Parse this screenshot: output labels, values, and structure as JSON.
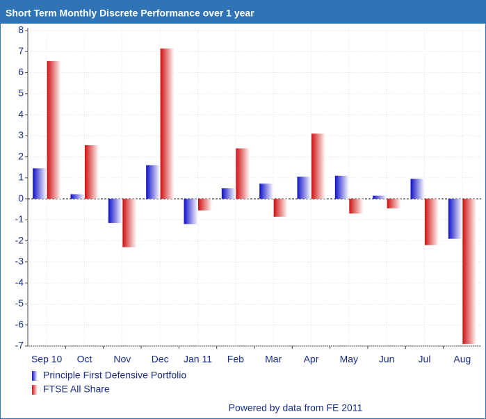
{
  "chart_data": {
    "type": "bar",
    "title": "Short Term Monthly Discrete Performance over 1 year",
    "categories": [
      "Sep 10",
      "Oct",
      "Nov",
      "Dec",
      "Jan 11",
      "Feb",
      "Mar",
      "Apr",
      "May",
      "Jun",
      "Jul",
      "Aug"
    ],
    "series": [
      {
        "name": "Principle First Defensive Portfolio",
        "color": "#1010c8",
        "values": [
          1.45,
          0.22,
          -1.15,
          1.6,
          -1.2,
          0.5,
          0.72,
          1.05,
          1.1,
          0.15,
          0.95,
          -1.9
        ]
      },
      {
        "name": "FTSE All Share",
        "color": "#d01010",
        "values": [
          6.55,
          2.55,
          -2.3,
          7.15,
          -0.55,
          2.4,
          -0.85,
          3.1,
          -0.7,
          -0.45,
          -2.2,
          -6.9
        ]
      }
    ],
    "ylim": [
      -7,
      8
    ],
    "yticks": [
      -7,
      -6,
      -5,
      -4,
      -3,
      -2,
      -1,
      0,
      1,
      2,
      3,
      4,
      5,
      6,
      7,
      8
    ],
    "grid": true,
    "legend": "bottom-left",
    "footer": "Powered by data from FE 2011"
  }
}
